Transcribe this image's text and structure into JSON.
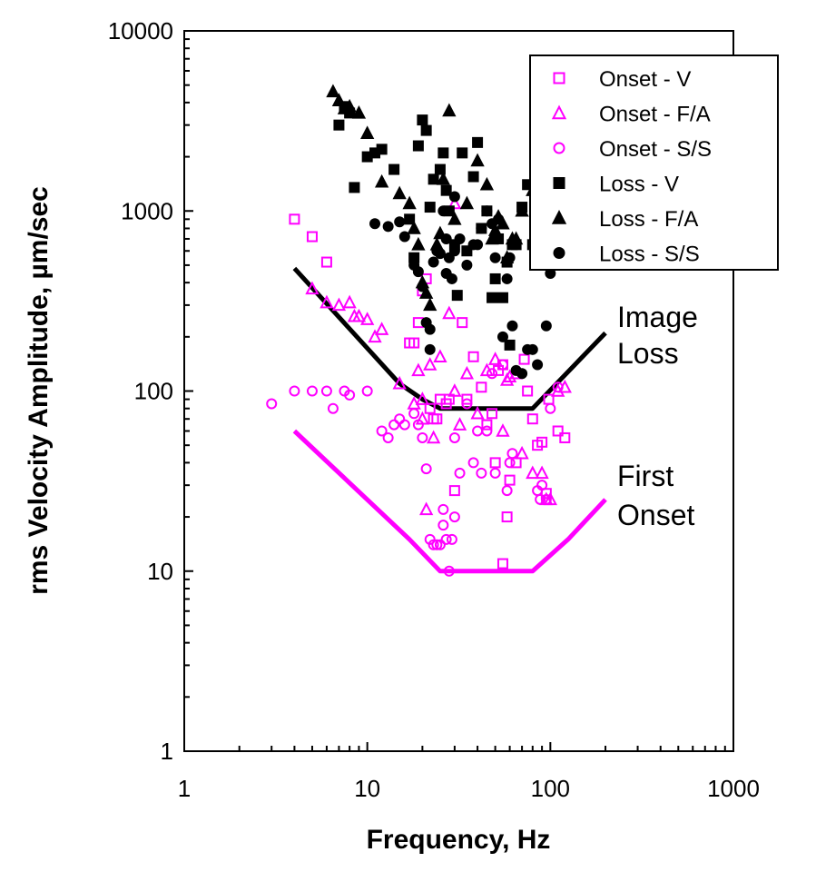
{
  "chart_data": {
    "type": "scatter",
    "x_scale": "log",
    "y_scale": "log",
    "xlabel": "Frequency, Hz",
    "ylabel": "rms Velocity Amplitude, µm/sec",
    "xlim": [
      1,
      1000
    ],
    "ylim": [
      1,
      10000
    ],
    "x_ticks": [
      "1",
      "10",
      "100",
      "1000"
    ],
    "y_ticks": [
      "1",
      "10",
      "100",
      "1000",
      "10000"
    ],
    "grid": false,
    "legend_position": "top-right",
    "series": [
      {
        "name": "Onset - V",
        "marker": "square-open",
        "color": "#ff00ff",
        "points": [
          [
            4,
            900
          ],
          [
            5,
            720
          ],
          [
            6,
            520
          ],
          [
            17,
            185
          ],
          [
            18,
            185
          ],
          [
            19,
            240
          ],
          [
            20,
            360
          ],
          [
            21,
            420
          ],
          [
            22,
            80
          ],
          [
            23,
            70
          ],
          [
            24,
            70
          ],
          [
            25,
            90
          ],
          [
            27,
            85
          ],
          [
            28,
            90
          ],
          [
            30,
            28
          ],
          [
            33,
            240
          ],
          [
            35,
            90
          ],
          [
            38,
            155
          ],
          [
            42,
            105
          ],
          [
            45,
            65
          ],
          [
            48,
            75
          ],
          [
            50,
            40
          ],
          [
            52,
            130
          ],
          [
            55,
            140
          ],
          [
            55,
            11
          ],
          [
            58,
            20
          ],
          [
            60,
            32
          ],
          [
            65,
            40
          ],
          [
            72,
            150
          ],
          [
            75,
            100
          ],
          [
            80,
            70
          ],
          [
            85,
            50
          ],
          [
            90,
            52
          ],
          [
            95,
            27
          ],
          [
            98,
            90
          ],
          [
            110,
            60
          ],
          [
            120,
            55
          ]
        ]
      },
      {
        "name": "Onset - F/A",
        "marker": "triangle-open",
        "color": "#ff00ff",
        "points": [
          [
            5,
            370
          ],
          [
            6,
            310
          ],
          [
            7,
            300
          ],
          [
            8,
            310
          ],
          [
            8.5,
            260
          ],
          [
            9,
            260
          ],
          [
            10,
            250
          ],
          [
            11,
            200
          ],
          [
            12,
            220
          ],
          [
            15,
            110
          ],
          [
            18,
            85
          ],
          [
            19,
            130
          ],
          [
            20,
            90
          ],
          [
            20,
            70
          ],
          [
            21,
            22
          ],
          [
            22,
            140
          ],
          [
            23,
            55
          ],
          [
            25,
            155
          ],
          [
            28,
            270
          ],
          [
            30,
            1100
          ],
          [
            30,
            100
          ],
          [
            32,
            65
          ],
          [
            35,
            125
          ],
          [
            40,
            75
          ],
          [
            45,
            130
          ],
          [
            50,
            150
          ],
          [
            55,
            60
          ],
          [
            58,
            115
          ],
          [
            60,
            120
          ],
          [
            65,
            125
          ],
          [
            70,
            45
          ],
          [
            80,
            35
          ],
          [
            90,
            35
          ],
          [
            95,
            25
          ],
          [
            100,
            25
          ],
          [
            110,
            100
          ],
          [
            120,
            105
          ]
        ]
      },
      {
        "name": "Onset - S/S",
        "marker": "circle-open",
        "color": "#ff00ff",
        "points": [
          [
            3,
            85
          ],
          [
            4,
            100
          ],
          [
            5,
            100
          ],
          [
            6,
            100
          ],
          [
            6.5,
            80
          ],
          [
            7.5,
            100
          ],
          [
            8,
            95
          ],
          [
            10,
            100
          ],
          [
            12,
            60
          ],
          [
            13,
            55
          ],
          [
            14,
            65
          ],
          [
            15,
            70
          ],
          [
            16,
            65
          ],
          [
            18,
            75
          ],
          [
            19,
            65
          ],
          [
            20,
            55
          ],
          [
            21,
            37
          ],
          [
            22,
            15
          ],
          [
            23,
            14
          ],
          [
            24,
            14
          ],
          [
            25,
            14
          ],
          [
            26,
            22
          ],
          [
            26,
            18
          ],
          [
            27,
            15
          ],
          [
            28,
            10
          ],
          [
            29,
            15
          ],
          [
            30,
            20
          ],
          [
            30,
            55
          ],
          [
            32,
            35
          ],
          [
            35,
            85
          ],
          [
            38,
            40
          ],
          [
            40,
            60
          ],
          [
            42,
            35
          ],
          [
            45,
            60
          ],
          [
            48,
            125
          ],
          [
            50,
            35
          ],
          [
            55,
            140
          ],
          [
            58,
            28
          ],
          [
            60,
            40
          ],
          [
            62,
            45
          ],
          [
            85,
            28
          ],
          [
            88,
            25
          ],
          [
            90,
            30
          ],
          [
            95,
            25
          ],
          [
            100,
            80
          ],
          [
            110,
            105
          ]
        ]
      },
      {
        "name": "Loss - V",
        "marker": "square-filled",
        "color": "#000000",
        "points": [
          [
            7,
            3000
          ],
          [
            7.5,
            3800
          ],
          [
            8,
            3500
          ],
          [
            8.5,
            1350
          ],
          [
            10,
            2000
          ],
          [
            11,
            2100
          ],
          [
            12,
            2200
          ],
          [
            14,
            1700
          ],
          [
            17,
            900
          ],
          [
            18,
            550
          ],
          [
            19,
            2300
          ],
          [
            20,
            3200
          ],
          [
            21,
            2800
          ],
          [
            22,
            1050
          ],
          [
            23,
            1500
          ],
          [
            25,
            1700
          ],
          [
            26,
            2100
          ],
          [
            27,
            1300
          ],
          [
            28,
            1000
          ],
          [
            30,
            650
          ],
          [
            31,
            340
          ],
          [
            33,
            2100
          ],
          [
            35,
            600
          ],
          [
            38,
            1550
          ],
          [
            40,
            2400
          ],
          [
            42,
            800
          ],
          [
            45,
            1000
          ],
          [
            48,
            330
          ],
          [
            50,
            420
          ],
          [
            52,
            700
          ],
          [
            55,
            330
          ],
          [
            58,
            520
          ],
          [
            60,
            180
          ],
          [
            62,
            650
          ],
          [
            65,
            650
          ],
          [
            70,
            1050
          ],
          [
            75,
            1400
          ],
          [
            80,
            650
          ]
        ]
      },
      {
        "name": "Loss - F/A",
        "marker": "triangle-filled",
        "color": "#000000",
        "points": [
          [
            6.5,
            4600
          ],
          [
            7,
            4100
          ],
          [
            7.5,
            3700
          ],
          [
            8,
            3800
          ],
          [
            9,
            3500
          ],
          [
            10,
            2700
          ],
          [
            12,
            1450
          ],
          [
            15,
            1250
          ],
          [
            17,
            1100
          ],
          [
            18,
            800
          ],
          [
            19,
            650
          ],
          [
            20,
            400
          ],
          [
            21,
            350
          ],
          [
            22,
            300
          ],
          [
            24,
            650
          ],
          [
            25,
            750
          ],
          [
            26,
            1500
          ],
          [
            28,
            3600
          ],
          [
            30,
            900
          ],
          [
            35,
            1100
          ],
          [
            40,
            1900
          ],
          [
            45,
            1400
          ],
          [
            48,
            700
          ],
          [
            50,
            780
          ],
          [
            52,
            930
          ],
          [
            55,
            850
          ],
          [
            58,
            550
          ],
          [
            62,
            700
          ],
          [
            65,
            700
          ],
          [
            70,
            1000
          ],
          [
            80,
            1300
          ]
        ]
      },
      {
        "name": "Loss - S/S",
        "marker": "circle-filled",
        "color": "#000000",
        "points": [
          [
            11,
            850
          ],
          [
            13,
            820
          ],
          [
            15,
            870
          ],
          [
            16,
            720
          ],
          [
            18,
            500
          ],
          [
            19,
            460
          ],
          [
            20,
            380
          ],
          [
            21,
            240
          ],
          [
            22,
            220
          ],
          [
            22,
            170
          ],
          [
            23,
            520
          ],
          [
            24,
            600
          ],
          [
            25,
            580
          ],
          [
            26,
            1000
          ],
          [
            27,
            700
          ],
          [
            27,
            450
          ],
          [
            28,
            550
          ],
          [
            29,
            420
          ],
          [
            30,
            1200
          ],
          [
            30,
            600
          ],
          [
            32,
            700
          ],
          [
            35,
            500
          ],
          [
            38,
            650
          ],
          [
            40,
            650
          ],
          [
            42,
            800
          ],
          [
            45,
            1000
          ],
          [
            48,
            850
          ],
          [
            50,
            550
          ],
          [
            52,
            900
          ],
          [
            55,
            200
          ],
          [
            58,
            420
          ],
          [
            60,
            550
          ],
          [
            62,
            230
          ],
          [
            65,
            130
          ],
          [
            70,
            125
          ],
          [
            75,
            170
          ],
          [
            80,
            170
          ],
          [
            85,
            140
          ],
          [
            95,
            230
          ],
          [
            100,
            450
          ]
        ]
      }
    ],
    "threshold_lines": [
      {
        "name": "Image Loss",
        "label_line1": "Image",
        "label_line2": "Loss",
        "color": "#000000",
        "points": [
          [
            4,
            480
          ],
          [
            15,
            110
          ],
          [
            20,
            90
          ],
          [
            25,
            80
          ],
          [
            80,
            80
          ],
          [
            200,
            210
          ]
        ]
      },
      {
        "name": "First Onset",
        "label_line1": "First",
        "label_line2": "Onset",
        "color": "#ff00ff",
        "points": [
          [
            4,
            60
          ],
          [
            17,
            15
          ],
          [
            25,
            10
          ],
          [
            80,
            10
          ],
          [
            125,
            15
          ],
          [
            200,
            25
          ]
        ]
      }
    ]
  }
}
